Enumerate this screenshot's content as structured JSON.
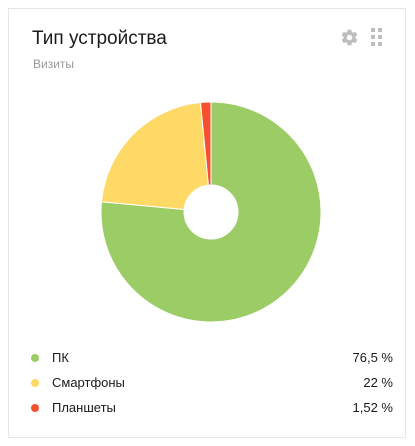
{
  "widget": {
    "title": "Тип устройства",
    "subtitle": "Визиты",
    "settings_icon": "gear-icon",
    "drag_icon": "drag-handle-icon"
  },
  "colors": {
    "pc": "#9ccc65",
    "smartphones": "#ffd966",
    "tablets": "#f4512c"
  },
  "chart_data": {
    "type": "pie",
    "donut": true,
    "categories": [
      "ПК",
      "Смартфоны",
      "Планшеты"
    ],
    "values": [
      76.5,
      22,
      1.52
    ],
    "value_labels": [
      "76,5 %",
      "22 %",
      "1,52 %"
    ],
    "legend": "bottom"
  }
}
